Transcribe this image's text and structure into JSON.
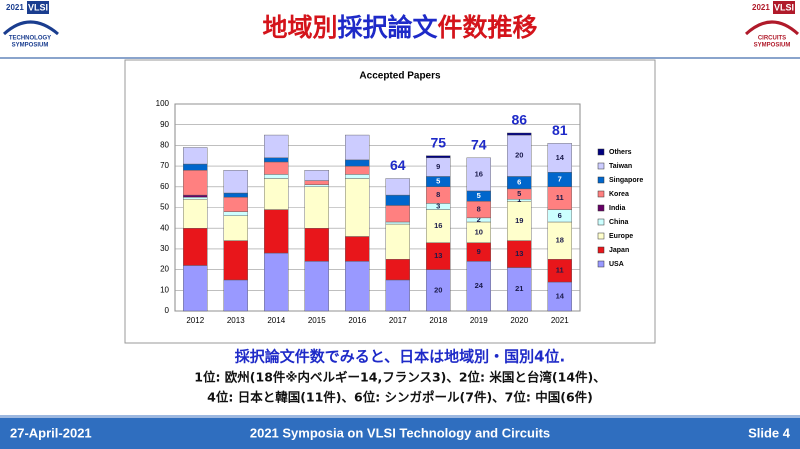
{
  "header": {
    "title_parts": [
      {
        "text": "地域別",
        "color": "#d4141b"
      },
      {
        "text": "採択論文",
        "color": "#1e2ac8"
      },
      {
        "text": "件数推移",
        "color": "#d4141b"
      }
    ],
    "logo_left": {
      "year": "2021",
      "name": "VLSI",
      "line1": "TECHNOLOGY",
      "line2": "SYMPOSIUM"
    },
    "logo_right": {
      "year": "2021",
      "name": "VLSI",
      "line1": "CIRCUITS",
      "line2": "SYMPOSIUM"
    }
  },
  "chart_data": {
    "type": "stacked_bar",
    "title": "Accepted Papers",
    "categories": [
      "2012",
      "2013",
      "2014",
      "2015",
      "2016",
      "2017",
      "2018",
      "2019",
      "2020",
      "2021"
    ],
    "series": [
      {
        "name": "USA",
        "color": "#9999ff",
        "labels": true,
        "values": [
          22,
          15,
          28,
          24,
          24,
          15,
          20,
          24,
          21,
          14
        ]
      },
      {
        "name": "Japan",
        "color": "#e8161b",
        "labels": true,
        "values": [
          18,
          19,
          21,
          16,
          12,
          10,
          13,
          9,
          13,
          11
        ]
      },
      {
        "name": "Europe",
        "color": "#ffffcc",
        "labels": true,
        "values": [
          14,
          12,
          15,
          20,
          28,
          17,
          16,
          10,
          19,
          18
        ]
      },
      {
        "name": "China",
        "color": "#ccffff",
        "labels": true,
        "values": [
          1,
          2,
          2,
          1,
          2,
          1,
          3,
          2,
          1,
          6
        ]
      },
      {
        "name": "India",
        "color": "#660066",
        "labels": true,
        "values": [
          1,
          0,
          0,
          0,
          0,
          0,
          0,
          0,
          0,
          0
        ]
      },
      {
        "name": "Korea",
        "color": "#ff8080",
        "labels": true,
        "values": [
          12,
          7,
          6,
          2,
          4,
          8,
          8,
          8,
          5,
          11
        ]
      },
      {
        "name": "Singapore",
        "color": "#0066cc",
        "labels": true,
        "values": [
          3,
          2,
          2,
          0,
          3,
          5,
          5,
          5,
          6,
          7
        ]
      },
      {
        "name": "Taiwan",
        "color": "#ccccff",
        "labels": true,
        "values": [
          8,
          11,
          11,
          5,
          12,
          8,
          9,
          16,
          20,
          14
        ]
      },
      {
        "name": "Others",
        "color": "#000080",
        "labels": false,
        "values": [
          0,
          0,
          0,
          0,
          0,
          0,
          1,
          0,
          1,
          0
        ]
      }
    ],
    "show_value_labels": [
      false,
      false,
      false,
      false,
      false,
      false,
      true,
      true,
      true,
      true
    ],
    "totals": [
      null,
      null,
      null,
      null,
      null,
      64,
      75,
      74,
      86,
      81
    ],
    "ylim": [
      0,
      100
    ],
    "yticks": [
      0,
      10,
      20,
      30,
      40,
      50,
      60,
      70,
      80,
      90,
      100
    ],
    "grid": true,
    "legend": "right"
  },
  "body": {
    "headline": "採択論文件数でみると、日本は地域別・国別4位.",
    "line1": "1位: 欧州(18件※内ベルギー14,フランス3)、2位: 米国と台湾(14件)、",
    "line2": "4位: 日本と韓国(11件)、6位: シンガポール(7件)、7位: 中国(6件)"
  },
  "footer": {
    "date": "27-April-2021",
    "event": "2021 Symposia on VLSI Technology and Circuits",
    "slide": "Slide 4"
  }
}
